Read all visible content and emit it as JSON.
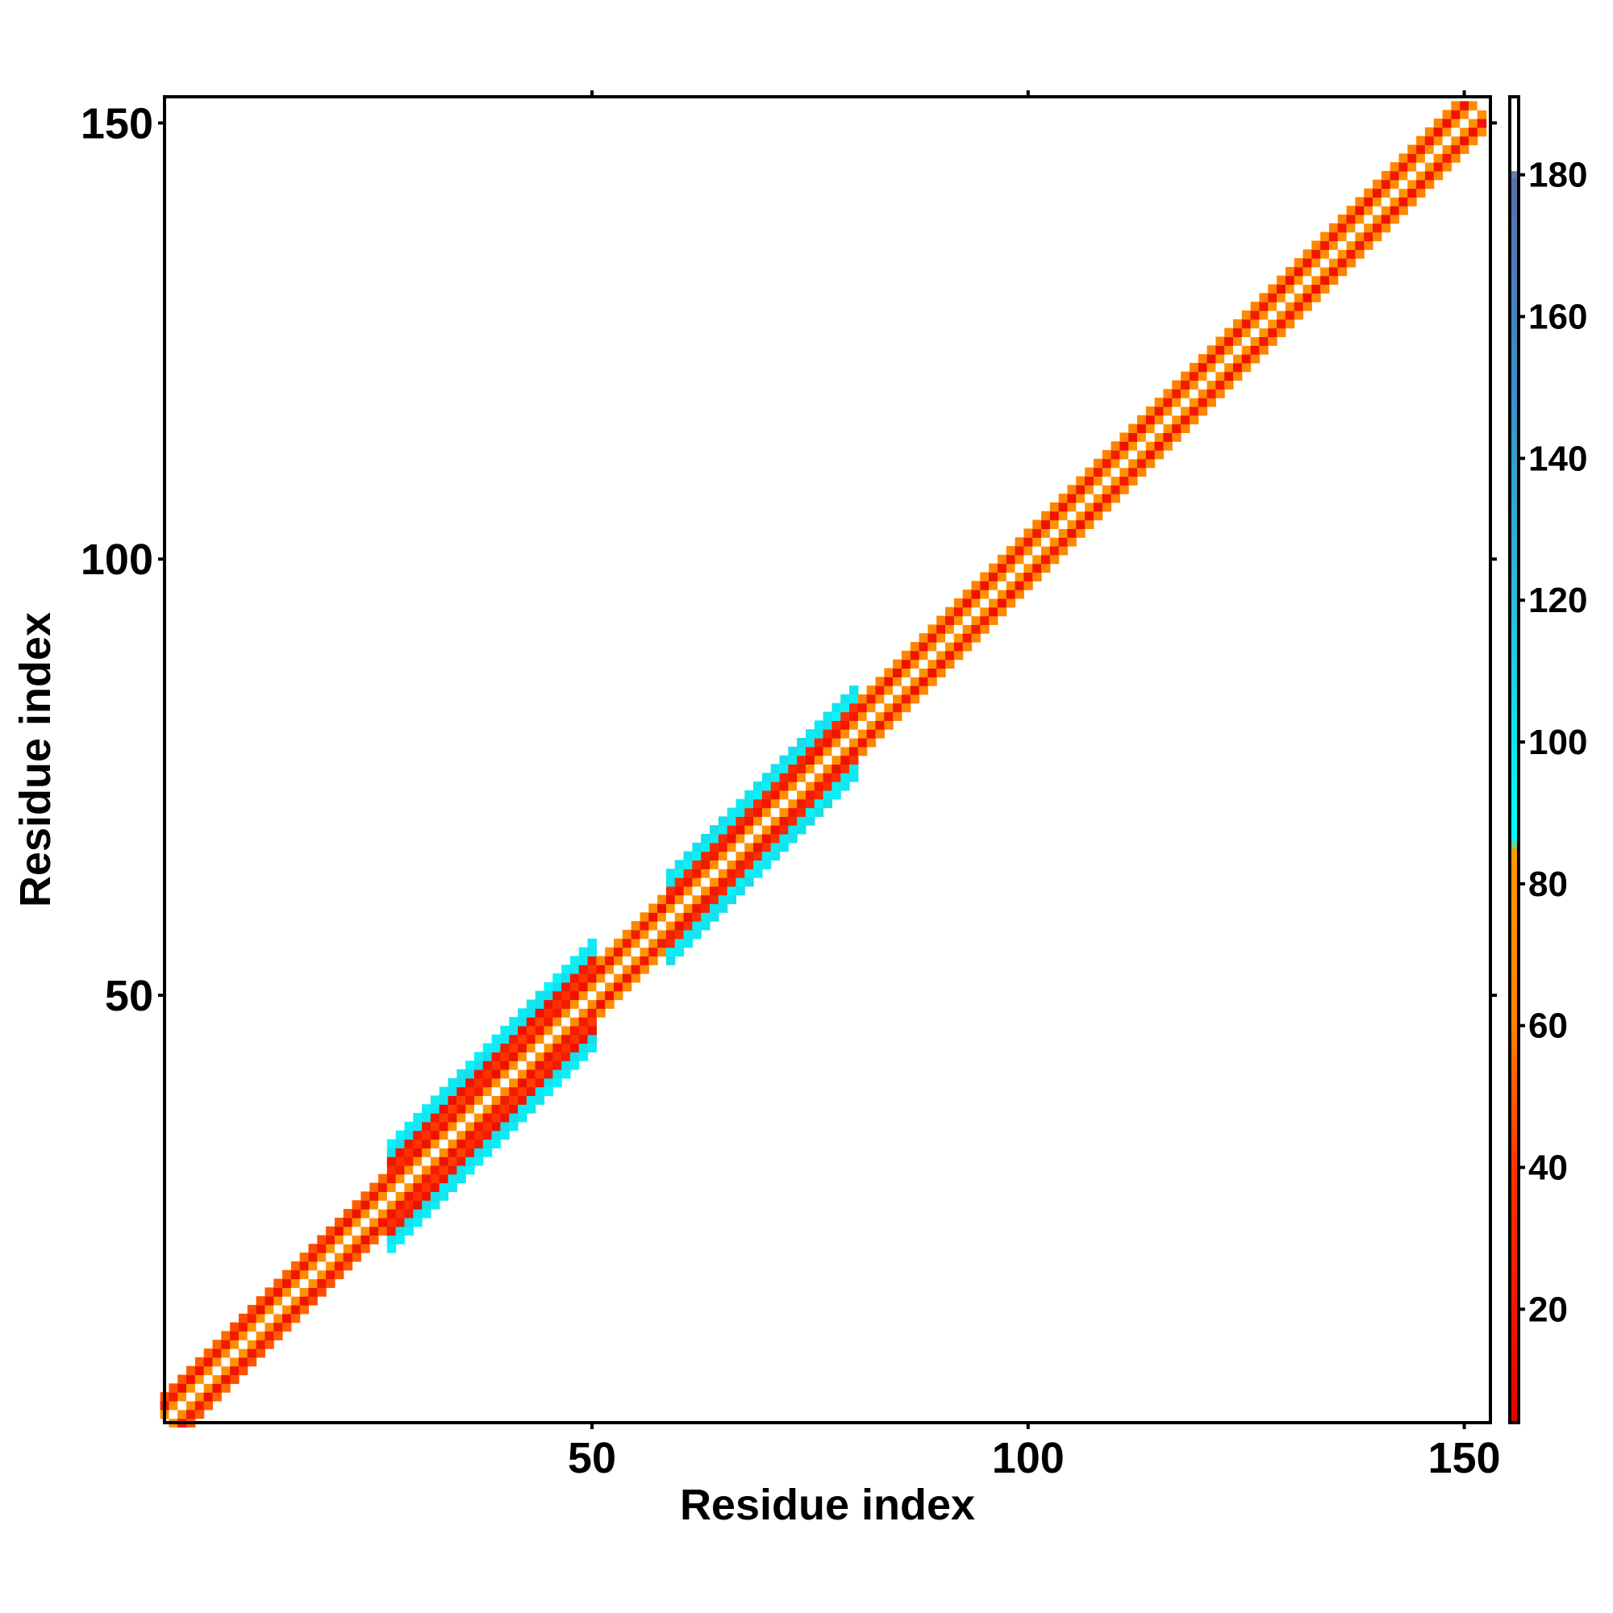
{
  "chart_data": {
    "type": "heatmap",
    "title": "",
    "xlabel": "Residue index",
    "ylabel": "Residue index",
    "n_residues": 152,
    "xlim": [
      1,
      153
    ],
    "ylim": [
      1,
      153
    ],
    "x_ticks": [
      50,
      100,
      150
    ],
    "y_ticks": [
      50,
      100,
      150
    ],
    "colorbar": {
      "min": 4,
      "max": 191,
      "ticks": [
        20,
        40,
        60,
        80,
        100,
        120,
        140,
        160,
        180
      ],
      "stops": [
        {
          "value": 4,
          "color": "#e60000"
        },
        {
          "value": 40,
          "color": "#ff3300"
        },
        {
          "value": 60,
          "color": "#ff8000"
        },
        {
          "value": 85,
          "color": "#ff9900"
        },
        {
          "value": 86,
          "color": "#00ffff"
        },
        {
          "value": 120,
          "color": "#2bbcd6"
        },
        {
          "value": 150,
          "color": "#3a8fc9"
        },
        {
          "value": 180,
          "color": "#5a6fa8"
        },
        {
          "value": 181,
          "color": "#ffffff"
        },
        {
          "value": 191,
          "color": "#ffffff"
        }
      ]
    },
    "pattern": "symmetric band along the diagonal; cell (i,j) holds the contact value between residues i and j; diagonal cells are white",
    "band_half_width_by_region": [
      {
        "from": 1,
        "to": 26,
        "half_width": 3,
        "offset_values": [
          0,
          75,
          20,
          50
        ]
      },
      {
        "from": 27,
        "to": 50,
        "half_width": 6,
        "offset_values": [
          0,
          75,
          20,
          40,
          20,
          100,
          95
        ]
      },
      {
        "from": 51,
        "to": 58,
        "half_width": 3,
        "offset_values": [
          0,
          75,
          20,
          70
        ]
      },
      {
        "from": 59,
        "to": 80,
        "half_width": 5,
        "offset_values": [
          0,
          75,
          20,
          35,
          95,
          100
        ]
      },
      {
        "from": 81,
        "to": 153,
        "half_width": 3,
        "offset_values": [
          0,
          75,
          20,
          65
        ]
      }
    ],
    "colors": {
      "frame": "#000000",
      "background": "#ffffff",
      "diagonal": "#ffffff"
    }
  }
}
